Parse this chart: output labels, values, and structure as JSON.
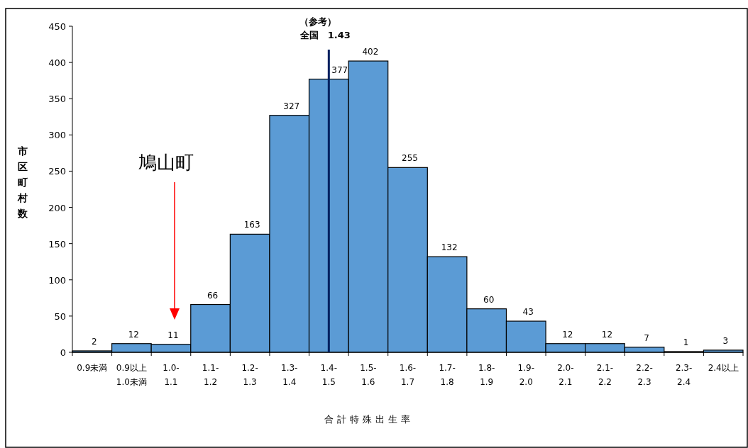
{
  "chart_data": {
    "type": "bar",
    "categories": [
      "0.9未満",
      "0.9以上\n1.0未満",
      "1.0-\n1.1",
      "1.1-\n1.2",
      "1.2-\n1.3",
      "1.3-\n1.4",
      "1.4-\n1.5",
      "1.5-\n1.6",
      "1.6-\n1.7",
      "1.7-\n1.8",
      "1.8-\n1.9",
      "1.9-\n2.0",
      "2.0-\n2.1",
      "2.1-\n2.2",
      "2.2-\n2.3",
      "2.3-\n2.4",
      "2.4以上"
    ],
    "values": [
      2,
      12,
      11,
      66,
      163,
      327,
      377,
      402,
      255,
      132,
      60,
      43,
      12,
      12,
      7,
      1,
      3
    ],
    "color": "#5b9bd5",
    "ylim": [
      0,
      450
    ],
    "yticks": [
      0,
      50,
      100,
      150,
      200,
      250,
      300,
      350,
      400,
      450
    ],
    "data_labels": true,
    "grid": false,
    "xlabel": "合計特殊出生率",
    "ylabel": "市区町村数",
    "ref_lines": [
      {
        "axis": "x",
        "value": "1.4-\n1.5",
        "label": "全国　1.43",
        "color": "#002060"
      }
    ],
    "annotations": [
      "（参考）",
      "鳩山町"
    ]
  }
}
